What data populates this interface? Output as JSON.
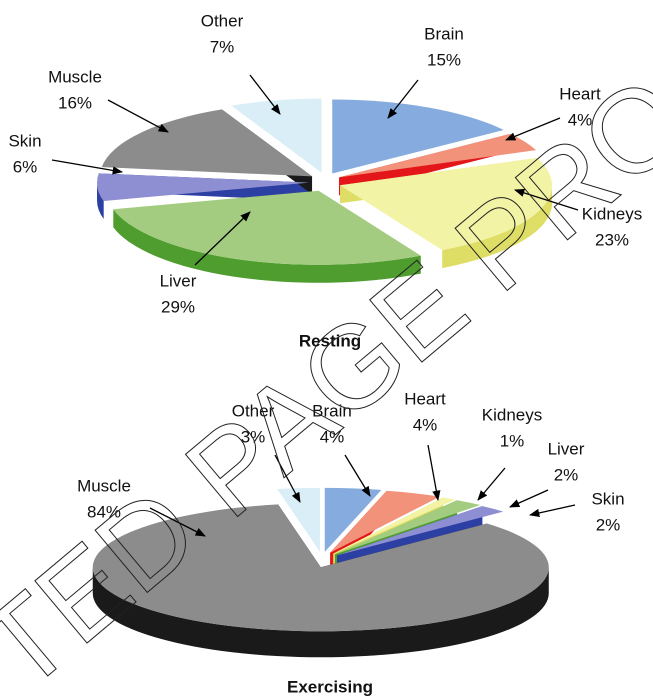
{
  "watermark": "TED PAGE PRO",
  "chart_data": [
    {
      "type": "pie",
      "title": "Resting",
      "categories": [
        "Brain",
        "Heart",
        "Kidneys",
        "Liver",
        "Skin",
        "Muscle",
        "Other"
      ],
      "values": [
        15,
        4,
        23,
        29,
        6,
        16,
        7
      ],
      "value_labels": [
        "15%",
        "4%",
        "23%",
        "29%",
        "6%",
        "16%",
        "7%"
      ],
      "colors": [
        "#86acdf",
        "#f2927a",
        "#f3f3a6",
        "#a3cc80",
        "#8e8fd2",
        "#8c8c8c",
        "#d9eef6"
      ],
      "edge_colors": [
        "#1a80d2",
        "#e3161a",
        "#dede66",
        "#4f9d2e",
        "#2c3fa2",
        "#1a1a1a",
        "#c3e2ef"
      ]
    },
    {
      "type": "pie",
      "title": "Exercising",
      "categories": [
        "Brain",
        "Heart",
        "Kidneys",
        "Liver",
        "Skin",
        "Muscle",
        "Other"
      ],
      "values": [
        4,
        4,
        1,
        2,
        2,
        84,
        3
      ],
      "value_labels": [
        "4%",
        "4%",
        "1%",
        "2%",
        "2%",
        "84%",
        "3%"
      ],
      "colors": [
        "#86acdf",
        "#f2927a",
        "#f3f3a6",
        "#a3cc80",
        "#8e8fd2",
        "#8c8c8c",
        "#d9eef6"
      ],
      "edge_colors": [
        "#1a80d2",
        "#e3161a",
        "#dede66",
        "#4f9d2e",
        "#2c3fa2",
        "#1a1a1a",
        "#c3e2ef"
      ]
    }
  ]
}
